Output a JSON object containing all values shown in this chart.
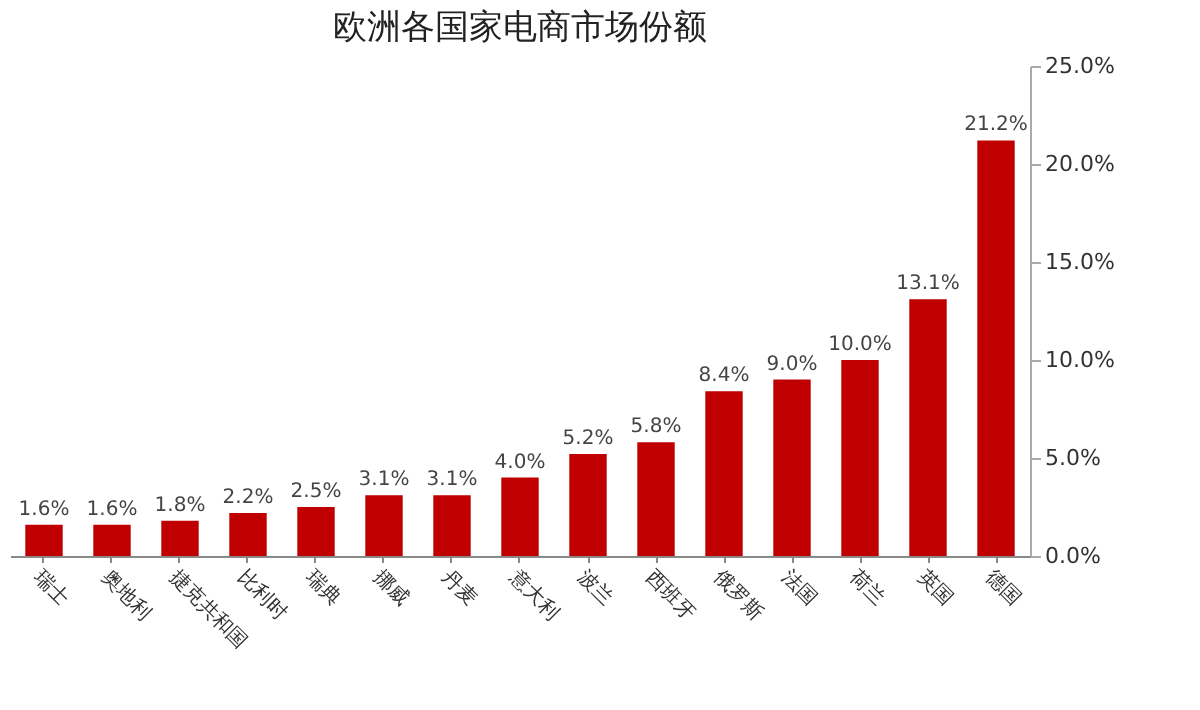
{
  "chart_data": {
    "type": "bar",
    "title": "欧洲各国家电商市场份额",
    "categories": [
      "瑞士",
      "奥地利",
      "捷克共和国",
      "比利时",
      "瑞典",
      "挪威",
      "丹麦",
      "意大利",
      "波兰",
      "西班牙",
      "俄罗斯",
      "法国",
      "荷兰",
      "英国",
      "德国"
    ],
    "values": [
      1.6,
      1.6,
      1.8,
      2.2,
      2.5,
      3.1,
      3.1,
      4.0,
      5.2,
      5.8,
      8.4,
      9.0,
      10.0,
      13.1,
      21.2
    ],
    "value_labels": [
      "1.6%",
      "1.6%",
      "1.8%",
      "2.2%",
      "2.5%",
      "3.1%",
      "3.1%",
      "4.0%",
      "5.2%",
      "5.8%",
      "8.4%",
      "9.0%",
      "10.0%",
      "13.1%",
      "21.2%"
    ],
    "color": "#c00000",
    "ylim": [
      0,
      25
    ],
    "yticks": [
      {
        "value": 0,
        "label": "0.0%"
      },
      {
        "value": 5,
        "label": "5.0%"
      },
      {
        "value": 10,
        "label": "10.0%"
      },
      {
        "value": 15,
        "label": "15.0%"
      },
      {
        "value": 20,
        "label": "20.0%"
      },
      {
        "value": 25,
        "label": "25.0%"
      }
    ],
    "grid": false
  }
}
